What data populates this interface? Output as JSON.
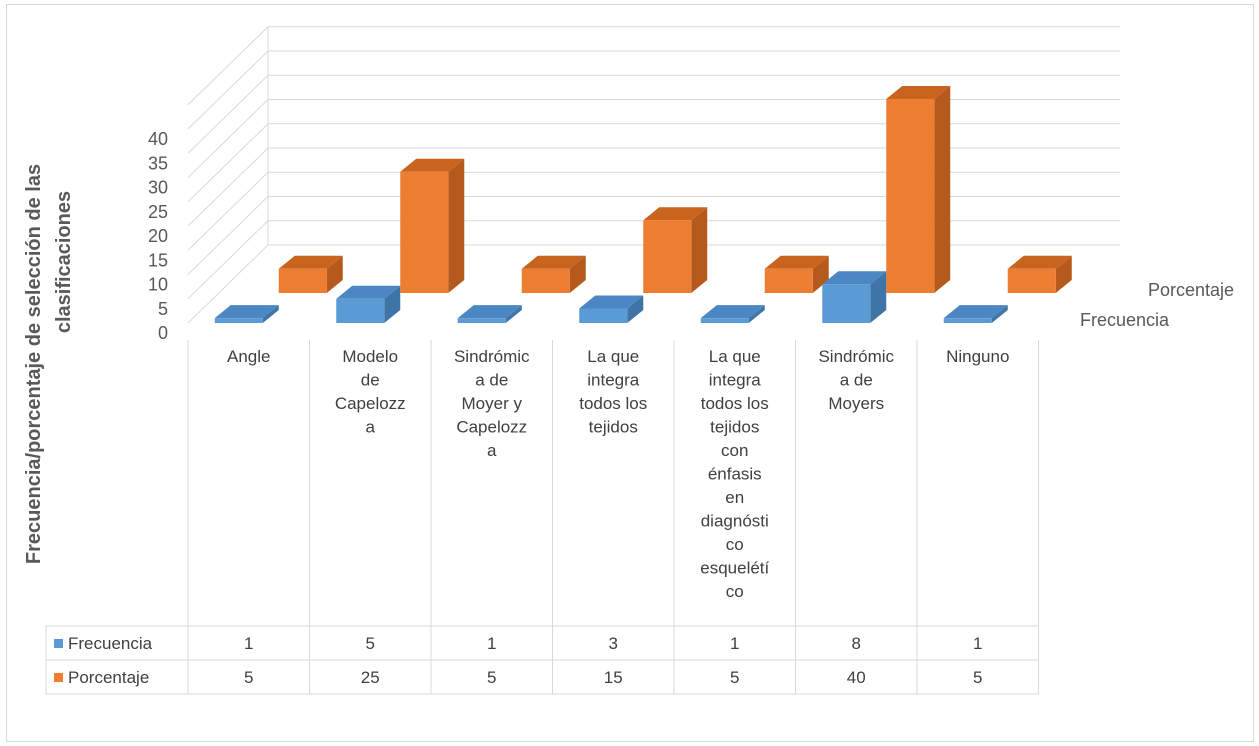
{
  "chart_data": {
    "type": "bar",
    "subtype": "3d-column-with-data-table",
    "title": "",
    "ylabel": "Frecuencia/porcentaje de selección de las clasificaciones",
    "xlabel": "",
    "ylim": [
      0,
      40
    ],
    "yticks": [
      "0",
      "5",
      "10",
      "15",
      "20",
      "25",
      "30",
      "35",
      "40"
    ],
    "grid": true,
    "categories": [
      [
        "Angle"
      ],
      [
        "Modelo",
        "de",
        "Capelozz",
        "a"
      ],
      [
        "Sindrómic",
        "a de",
        "Moyer y",
        "Capelozz",
        "a"
      ],
      [
        "La que",
        "integra",
        "todos los",
        "tejidos"
      ],
      [
        "La que",
        "integra",
        "todos los",
        "tejidos",
        "con",
        "énfasis",
        "en",
        "diagnósti",
        "co",
        "esquelétí",
        "co"
      ],
      [
        "Sindrómic",
        "a de",
        "Moyers"
      ],
      [
        "Ninguno"
      ]
    ],
    "series": [
      {
        "name": "Frecuencia",
        "values": [
          1,
          5,
          1,
          3,
          1,
          8,
          1
        ],
        "value_labels": [
          "1",
          "5",
          "1",
          "3",
          "1",
          "8",
          "1"
        ],
        "color": "#5b9bd5",
        "color_side": "#3e74a6",
        "color_top": "#4a87c3"
      },
      {
        "name": "Porcentaje",
        "values": [
          5,
          25,
          5,
          15,
          5,
          40,
          5
        ],
        "value_labels": [
          "5",
          "25",
          "5",
          "15",
          "5",
          "40",
          "5"
        ],
        "color": "#ed7d31",
        "color_side": "#b55a1c",
        "color_top": "#c9641f"
      }
    ],
    "depth_labels": [
      "Porcentaje",
      "Frecuencia"
    ]
  }
}
